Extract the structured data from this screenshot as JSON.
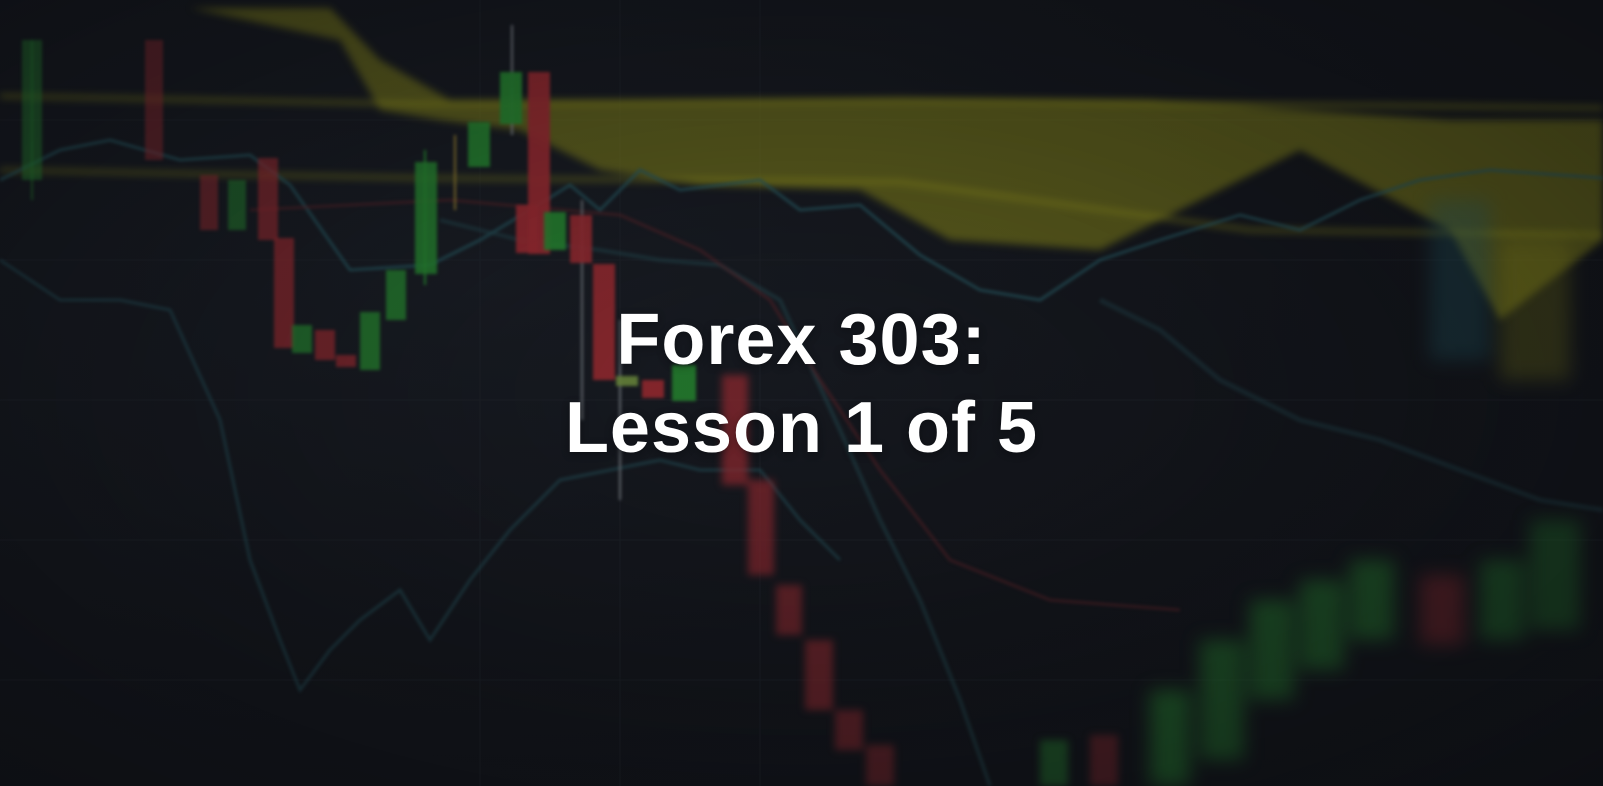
{
  "title": {
    "line1": "Forex 303:",
    "line2": "Lesson 1 of 5"
  },
  "colors": {
    "background": "#15171d",
    "title": "#ffffff",
    "bullish_candle": "#2fae3a",
    "bearish_candle": "#c5333a",
    "cloud": "#bfbd1c",
    "indicator_line": "#2f6f7a"
  }
}
